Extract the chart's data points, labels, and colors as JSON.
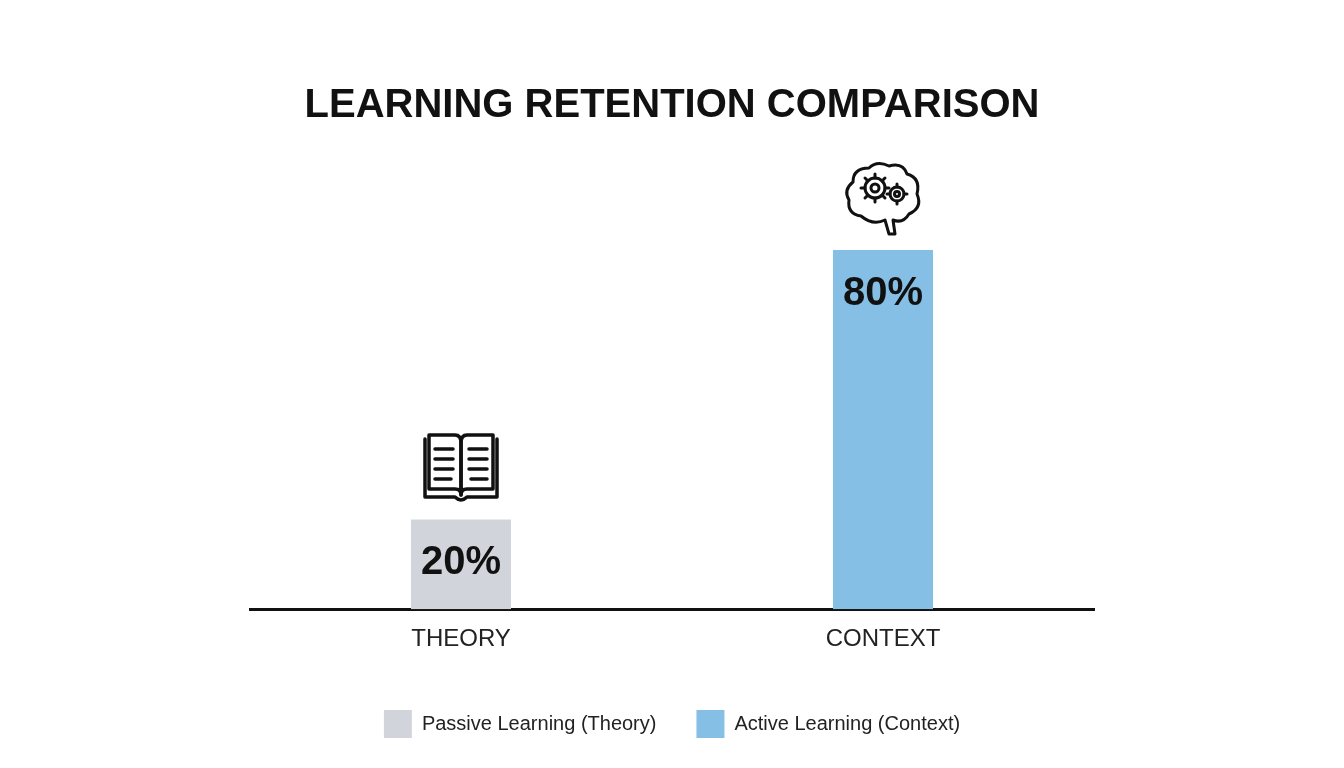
{
  "chart_data": {
    "type": "bar",
    "title": "LEARNING RETENTION COMPARISON",
    "categories": [
      "THEORY",
      "CONTEXT"
    ],
    "series": [
      {
        "name": "Passive Learning (Theory)",
        "color": "#d1d5db",
        "values": [
          20,
          null
        ],
        "value_labels": [
          "20%",
          null
        ]
      },
      {
        "name": "Active Learning (Context)",
        "color": "#86bfe6",
        "values": [
          null,
          80
        ],
        "value_labels": [
          null,
          "80%"
        ]
      }
    ],
    "tick_labels": "x",
    "grid": false,
    "legend": "bottom"
  }
}
